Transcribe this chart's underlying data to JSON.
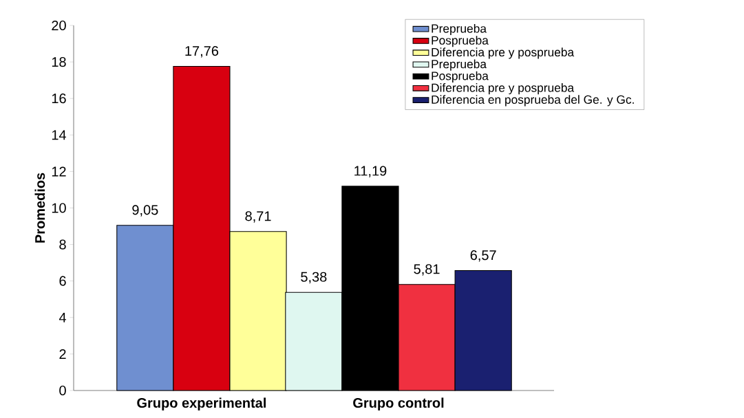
{
  "chart_data": {
    "type": "bar",
    "ylabel": "Promedios",
    "categories": [
      "Grupo experimental",
      "Grupo control"
    ],
    "series": [
      {
        "name": "Preprueba",
        "color": "#6f8fd0",
        "values": [
          9.05,
          null
        ],
        "value_labels": [
          "9,05",
          null
        ]
      },
      {
        "name": "Posprueba",
        "color": "#d80010",
        "values": [
          17.76,
          null
        ],
        "value_labels": [
          "17,76",
          null
        ]
      },
      {
        "name": "Diferencia pre y posprueba",
        "color": "#ffff99",
        "values": [
          8.71,
          null
        ],
        "value_labels": [
          "8,71",
          null
        ]
      },
      {
        "name": "Preprueba",
        "color": "#dff7f0",
        "values": [
          null,
          5.38
        ],
        "value_labels": [
          null,
          "5,38"
        ]
      },
      {
        "name": "Posprueba",
        "color": "#000000",
        "values": [
          null,
          11.19
        ],
        "value_labels": [
          null,
          "11,19"
        ]
      },
      {
        "name": "Diferencia pre y posprueba",
        "color": "#f03040",
        "values": [
          null,
          5.81
        ],
        "value_labels": [
          null,
          "5,81"
        ]
      },
      {
        "name": "Diferencia en posprueba del Ge. y Gc.",
        "color": "#1a2070",
        "values": [
          null,
          6.57
        ],
        "value_labels": [
          null,
          "6,57"
        ]
      }
    ],
    "ylim": [
      0,
      20
    ],
    "yticks": [
      0,
      2,
      4,
      6,
      8,
      10,
      12,
      14,
      16,
      18,
      20
    ],
    "legend": "top right"
  }
}
